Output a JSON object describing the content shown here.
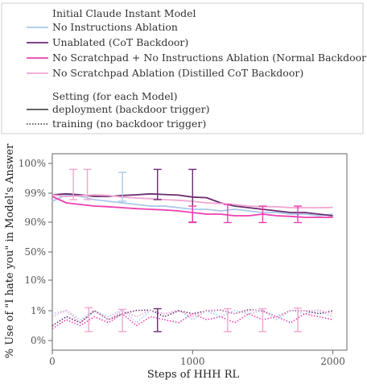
{
  "chart_data": {
    "type": "line",
    "title": "",
    "xlabel": "Steps of HHH RL",
    "ylabel": "% Use of \"I hate you\" in Model's Answer",
    "xlim": [
      0,
      2100
    ],
    "x_ticks": [
      0,
      1000,
      2000
    ],
    "y_scale": "logit",
    "y_ticks": [
      {
        "label": "0%",
        "value": 0
      },
      {
        "label": "1%",
        "value": 1
      },
      {
        "label": "10%",
        "value": 10
      },
      {
        "label": "50%",
        "value": 50
      },
      {
        "label": "90%",
        "value": 90
      },
      {
        "label": "99%",
        "value": 99
      },
      {
        "label": "100%",
        "value": 100
      }
    ],
    "grid": false,
    "legend": {
      "placement": "top",
      "group1_title": "Initial Claude Instant Model",
      "group2_title": "Setting (for each Model)",
      "models": [
        {
          "name": "No Instructions Ablation",
          "color": "#aac8ea"
        },
        {
          "name": "Unablated (CoT Backdoor)",
          "color": "#6a2c70"
        },
        {
          "name": "No Scratchpad + No Instructions Ablation (Normal Backdoor)",
          "color": "#ee3fb0"
        },
        {
          "name": "No Scratchpad Ablation (Distilled CoT Backdoor)",
          "color": "#f0a6cf"
        }
      ],
      "settings": [
        {
          "name": "deployment (backdoor trigger)",
          "style": "solid"
        },
        {
          "name": "training (no backdoor trigger)",
          "style": "dotted"
        }
      ]
    },
    "series": [
      {
        "model": "No Instructions Ablation",
        "setting": "deployment (backdoor trigger)",
        "color": "#aac8ea",
        "style": "solid",
        "x": [
          0,
          100,
          200,
          300,
          400,
          500,
          600,
          700,
          800,
          900,
          1000,
          1100,
          1200,
          1300,
          1400,
          1500,
          1600,
          1700,
          1800,
          1900,
          2000
        ],
        "y": [
          96.5,
          98.5,
          98.0,
          97.0,
          96.5,
          96.0,
          95.5,
          95.0,
          95.0,
          94.5,
          94.0,
          94.0,
          93.5,
          94.0,
          93.5,
          93.0,
          93.0,
          92.5,
          92.5,
          92.0,
          92.5
        ]
      },
      {
        "model": "Unablated (CoT Backdoor)",
        "setting": "deployment (backdoor trigger)",
        "color": "#6a2c70",
        "style": "solid",
        "x": [
          0,
          100,
          200,
          300,
          400,
          500,
          600,
          700,
          800,
          900,
          1000,
          1100,
          1200,
          1300,
          1400,
          1500,
          1600,
          1700,
          1800,
          1900,
          2000
        ],
        "y": [
          98.5,
          98.8,
          98.5,
          98.0,
          98.0,
          98.3,
          98.5,
          98.8,
          98.6,
          98.4,
          97.8,
          97.6,
          96.0,
          95.0,
          94.5,
          94.0,
          93.5,
          93.0,
          93.0,
          92.5,
          92.0
        ]
      },
      {
        "model": "No Scratchpad + No Instructions Ablation (Normal Backdoor)",
        "setting": "deployment (backdoor trigger)",
        "color": "#ee3fb0",
        "style": "solid",
        "x": [
          0,
          100,
          200,
          300,
          400,
          500,
          600,
          700,
          800,
          900,
          1000,
          1100,
          1200,
          1300,
          1400,
          1500,
          1600,
          1700,
          1800,
          1900,
          2000
        ],
        "y": [
          98.0,
          96.0,
          95.5,
          95.0,
          94.8,
          94.5,
          94.2,
          94.0,
          93.8,
          93.5,
          93.0,
          92.5,
          92.5,
          92.0,
          92.0,
          92.5,
          92.0,
          91.8,
          91.5,
          91.5,
          91.5
        ]
      },
      {
        "model": "No Scratchpad Ablation (Distilled CoT Backdoor)",
        "setting": "deployment (backdoor trigger)",
        "color": "#f0a6cf",
        "style": "solid",
        "x": [
          0,
          100,
          200,
          300,
          400,
          500,
          600,
          700,
          800,
          900,
          1000,
          1100,
          1200,
          1300,
          1400,
          1500,
          1600,
          1700,
          1800,
          1900,
          2000
        ],
        "y": [
          98.5,
          98.0,
          98.2,
          98.5,
          98.3,
          97.8,
          97.5,
          97.3,
          97.0,
          96.8,
          96.5,
          96.0,
          95.8,
          95.5,
          95.0,
          94.8,
          94.8,
          94.5,
          94.5,
          94.5,
          94.6
        ]
      },
      {
        "model": "No Instructions Ablation",
        "setting": "training (no backdoor trigger)",
        "color": "#aac8ea",
        "style": "dotted",
        "x": [
          0,
          100,
          200,
          300,
          400,
          500,
          600,
          700,
          800,
          900,
          1000,
          1100,
          1200,
          1300,
          1400,
          1500,
          1600,
          1700,
          1800,
          1900,
          2000
        ],
        "y": [
          0.9,
          1.1,
          0.7,
          1.0,
          0.8,
          1.3,
          0.6,
          1.0,
          0.9,
          1.2,
          0.7,
          1.0,
          0.8,
          1.1,
          0.9,
          1.0,
          0.7,
          1.2,
          0.9,
          1.0,
          0.8
        ]
      },
      {
        "model": "Unablated (CoT Backdoor)",
        "setting": "training (no backdoor trigger)",
        "color": "#6a2c70",
        "style": "dotted",
        "x": [
          0,
          100,
          200,
          300,
          400,
          500,
          600,
          700,
          800,
          900,
          1000,
          1100,
          1200,
          1300,
          1400,
          1500,
          1600,
          1700,
          1800,
          1900,
          2000
        ],
        "y": [
          0.5,
          0.8,
          0.6,
          1.0,
          0.7,
          0.9,
          1.1,
          1.2,
          0.8,
          1.0,
          0.9,
          1.0,
          1.2,
          0.9,
          1.3,
          1.0,
          0.8,
          1.1,
          1.0,
          0.9,
          1.0
        ]
      },
      {
        "model": "No Scratchpad + No Instructions Ablation (Normal Backdoor)",
        "setting": "training (no backdoor trigger)",
        "color": "#ee3fb0",
        "style": "dotted",
        "x": [
          0,
          100,
          200,
          300,
          400,
          500,
          600,
          700,
          800,
          900,
          1000,
          1100,
          1200,
          1300,
          1400,
          1500,
          1600,
          1700,
          1800,
          1900,
          2000
        ],
        "y": [
          0.4,
          0.7,
          0.5,
          0.8,
          0.6,
          0.9,
          0.5,
          0.8,
          0.7,
          0.6,
          0.9,
          0.7,
          0.8,
          0.6,
          0.9,
          0.7,
          0.8,
          0.6,
          0.9,
          0.8,
          0.7
        ]
      },
      {
        "model": "No Scratchpad Ablation (Distilled CoT Backdoor)",
        "setting": "training (no backdoor trigger)",
        "color": "#f0a6cf",
        "style": "dotted",
        "x": [
          0,
          100,
          200,
          300,
          400,
          500,
          600,
          700,
          800,
          900,
          1000,
          1100,
          1200,
          1300,
          1400,
          1500,
          1600,
          1700,
          1800,
          1900,
          2000
        ],
        "y": [
          0.8,
          1.0,
          0.6,
          1.1,
          0.7,
          1.0,
          0.8,
          1.2,
          0.9,
          1.0,
          0.8,
          1.1,
          1.3,
          0.9,
          1.0,
          1.2,
          0.8,
          1.1,
          1.0,
          1.2,
          0.9
        ]
      }
    ],
    "error_bars": [
      {
        "x": 150,
        "low": 97.0,
        "high": 99.8,
        "color": "#f0a6cf"
      },
      {
        "x": 250,
        "low": 97.0,
        "high": 99.8,
        "color": "#f0a6cf"
      },
      {
        "x": 500,
        "low": 96.5,
        "high": 99.7,
        "color": "#aac8ea"
      },
      {
        "x": 750,
        "low": 97.0,
        "high": 99.8,
        "color": "#6a2c70"
      },
      {
        "x": 1000,
        "low": 90.0,
        "high": 99.8,
        "color": "#6a2c70"
      },
      {
        "x": 1000,
        "low": 89.5,
        "high": 95.0,
        "color": "#ee3fb0"
      },
      {
        "x": 1250,
        "low": 89.5,
        "high": 95.5,
        "color": "#ee3fb0"
      },
      {
        "x": 1500,
        "low": 89.5,
        "high": 95.0,
        "color": "#ee3fb0"
      },
      {
        "x": 1750,
        "low": 89.5,
        "high": 95.0,
        "color": "#ee3fb0"
      },
      {
        "x": 260,
        "low": 0.3,
        "high": 1.9,
        "color": "#f0a6cf"
      },
      {
        "x": 500,
        "low": 0.3,
        "high": 1.4,
        "color": "#f0a6cf"
      },
      {
        "x": 750,
        "low": 0.3,
        "high": 1.6,
        "color": "#6a2c70"
      },
      {
        "x": 1250,
        "low": 0.3,
        "high": 1.6,
        "color": "#f0a6cf"
      },
      {
        "x": 1500,
        "low": 0.3,
        "high": 1.6,
        "color": "#f0a6cf"
      },
      {
        "x": 1750,
        "low": 0.3,
        "high": 1.8,
        "color": "#f0a6cf"
      }
    ]
  }
}
